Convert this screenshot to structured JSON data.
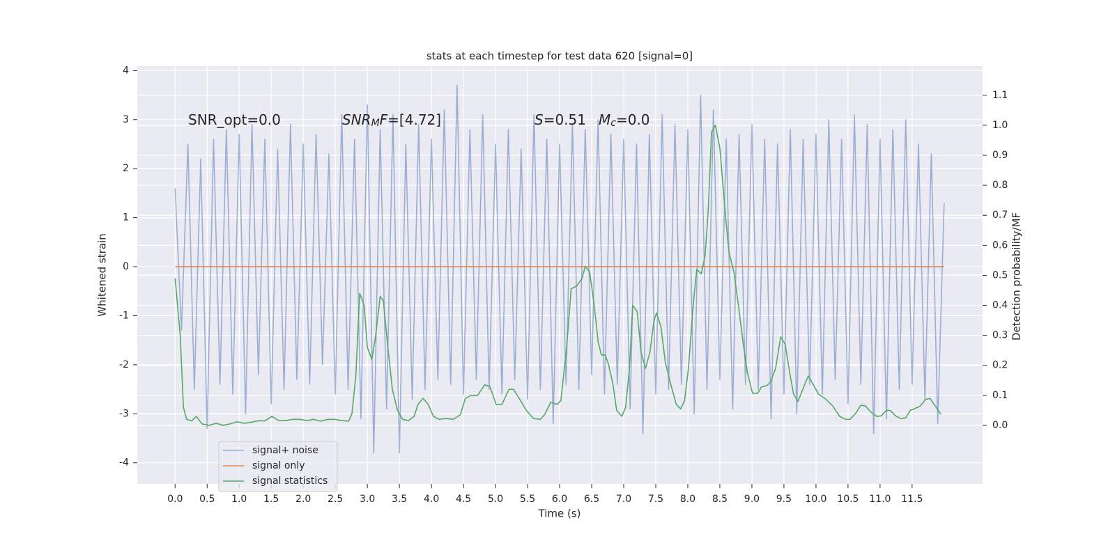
{
  "chart_data": {
    "type": "line",
    "title": "stats at each timestep for test data 620 [signal=0]",
    "xlabel": "Time (s)",
    "ylabel": "Whitened strain",
    "y2label": "Detection probability/MF",
    "xlim": [
      -0.59,
      12.6
    ],
    "ylim": [
      -4.43,
      4.09
    ],
    "y2lim": [
      -0.195,
      1.197
    ],
    "xticks": [
      {
        "value": 0,
        "label": "0.0"
      },
      0.5,
      {
        "value": 1,
        "label": "1.0"
      },
      1.5,
      {
        "value": 2,
        "label": "2.0"
      },
      2.5,
      {
        "value": 3,
        "label": "3.0"
      },
      3.5,
      {
        "value": 4,
        "label": "4.0"
      },
      4.5,
      {
        "value": 5,
        "label": "5.0"
      },
      5.5,
      {
        "value": 6,
        "label": "6.0"
      },
      6.5,
      {
        "value": 7,
        "label": "7.0"
      },
      7.5,
      {
        "value": 8,
        "label": "8.0"
      },
      8.5,
      {
        "value": 9,
        "label": "9.0"
      },
      9.5,
      {
        "value": 10,
        "label": "10.0"
      },
      10.5,
      {
        "value": 11,
        "label": "11.0"
      },
      11.5
    ],
    "yticks": [
      -4,
      -3,
      -2,
      -1,
      0,
      1,
      2,
      3,
      4
    ],
    "y2ticks": [
      {
        "value": 0,
        "label": "0.0"
      },
      0.1,
      0.2,
      0.3,
      0.4,
      0.5,
      0.6,
      0.7,
      0.8,
      0.9,
      {
        "value": 1,
        "label": "1.0"
      },
      1.1
    ],
    "grid": true,
    "legend": "lower left",
    "annotations": [
      {
        "parts": [
          {
            "text": "SNR_opt=0.0"
          }
        ]
      },
      {
        "parts": [
          {
            "text": "SNR",
            "style": "italic"
          },
          {
            "text": "M",
            "style": "sub"
          },
          {
            "text": "F",
            "style": "italic"
          },
          {
            "text": "=[4.72]"
          }
        ]
      },
      {
        "parts": [
          {
            "text": "S",
            "style": "italic"
          },
          {
            "text": "=0.51"
          }
        ]
      },
      {
        "parts": [
          {
            "text": "M",
            "style": "italic"
          },
          {
            "text": "c",
            "style": "sub"
          },
          {
            "text": "=0.0"
          }
        ]
      }
    ],
    "series": [
      {
        "name": "signal+ noise",
        "color": "#4c72b0",
        "opacity": 0.5,
        "x": [
          0,
          0.1,
          0.2,
          0.3,
          0.4,
          0.5,
          0.6,
          0.7,
          0.8,
          0.9,
          1,
          1.1,
          1.2,
          1.3,
          1.4,
          1.5,
          1.6,
          1.7,
          1.8,
          1.9,
          2,
          2.1,
          2.2,
          2.3,
          2.4,
          2.5,
          2.6,
          2.7,
          2.8,
          2.9,
          3,
          3.1,
          3.2,
          3.3,
          3.4,
          3.5,
          3.6,
          3.7,
          3.8,
          3.9,
          4,
          4.1,
          4.2,
          4.3,
          4.4,
          4.5,
          4.6,
          4.7,
          4.8,
          4.9,
          5,
          5.1,
          5.2,
          5.3,
          5.4,
          5.5,
          5.6,
          5.7,
          5.8,
          5.9,
          6,
          6.1,
          6.2,
          6.3,
          6.4,
          6.5,
          6.6,
          6.7,
          6.8,
          6.9,
          7,
          7.1,
          7.2,
          7.3,
          7.4,
          7.5,
          7.6,
          7.7,
          7.8,
          7.9,
          8,
          8.1,
          8.2,
          8.3,
          8.4,
          8.5,
          8.6,
          8.7,
          8.8,
          8.9,
          9,
          9.1,
          9.2,
          9.3,
          9.4,
          9.5,
          9.6,
          9.7,
          9.8,
          9.9,
          10,
          10.1,
          10.2,
          10.3,
          10.4,
          10.5,
          10.6,
          10.7,
          10.8,
          10.9,
          11,
          11.1,
          11.2,
          11.3,
          11.4,
          11.5,
          11.6,
          11.7,
          11.8,
          11.9,
          12
        ],
        "values": [
          1.6,
          -1.3,
          2.5,
          -2.5,
          2.2,
          -3.3,
          2.6,
          -2.4,
          2.8,
          -2.6,
          2.7,
          -3.0,
          2.9,
          -2.2,
          2.6,
          -2.8,
          2.4,
          -2.5,
          2.9,
          -2.3,
          2.5,
          -2.4,
          2.7,
          -2.0,
          2.3,
          -2.6,
          3.1,
          -2.5,
          2.6,
          -3.1,
          3.3,
          -3.8,
          2.8,
          -2.9,
          3.1,
          -3.8,
          2.5,
          -2.7,
          2.9,
          -2.5,
          2.6,
          -2.3,
          3.2,
          -2.4,
          3.7,
          -2.6,
          2.8,
          -2.3,
          3.1,
          -2.5,
          2.5,
          -2.6,
          2.8,
          -2.3,
          2.4,
          -2.7,
          3.1,
          -2.5,
          2.6,
          -3.2,
          2.5,
          -2.4,
          2.9,
          -2.5,
          2.8,
          -2.2,
          3.0,
          -2.6,
          2.7,
          -2.4,
          2.6,
          -2.9,
          2.5,
          -3.4,
          2.7,
          -2.6,
          3.1,
          -2.5,
          2.9,
          -2.4,
          2.8,
          -3.0,
          3.5,
          -2.5,
          3.2,
          -2.3,
          2.6,
          -2.9,
          2.7,
          -2.4,
          2.9,
          -2.5,
          2.6,
          -3.1,
          2.5,
          -2.6,
          2.8,
          -3.0,
          2.6,
          -2.4,
          2.7,
          -2.6,
          3.0,
          -2.3,
          2.6,
          -2.8,
          3.1,
          -2.4,
          2.9,
          -3.4,
          2.6,
          -3.1,
          2.8,
          -2.5,
          3.0,
          -2.4,
          2.5,
          -2.7,
          2.3,
          -3.2,
          1.3
        ]
      },
      {
        "name": "signal only",
        "color": "#dd8452",
        "opacity": 1,
        "x": [
          0,
          12
        ],
        "values": [
          0,
          0
        ]
      },
      {
        "name": "signal statistics",
        "color": "#55a868",
        "opacity": 1,
        "axis": "y2",
        "x": [
          0,
          0.08,
          0.13,
          0.18,
          0.26,
          0.33,
          0.42,
          0.53,
          0.64,
          0.75,
          0.86,
          0.97,
          1.08,
          1.18,
          1.29,
          1.4,
          1.51,
          1.62,
          1.73,
          1.84,
          1.95,
          2.05,
          2.16,
          2.27,
          2.38,
          2.49,
          2.6,
          2.71,
          2.76,
          2.82,
          2.88,
          2.95,
          3.0,
          3.07,
          3.13,
          3.2,
          3.25,
          3.32,
          3.39,
          3.47,
          3.55,
          3.64,
          3.73,
          3.79,
          3.87,
          3.95,
          4.03,
          4.12,
          4.23,
          4.34,
          4.45,
          4.53,
          4.62,
          4.72,
          4.83,
          4.91,
          5.01,
          5.1,
          5.21,
          5.28,
          5.37,
          5.48,
          5.59,
          5.7,
          5.77,
          5.86,
          5.96,
          6.02,
          6.11,
          6.18,
          6.27,
          6.35,
          6.4,
          6.47,
          6.54,
          6.6,
          6.65,
          6.71,
          6.76,
          6.83,
          6.89,
          6.97,
          7.03,
          7.09,
          7.14,
          7.21,
          7.27,
          7.34,
          7.41,
          7.47,
          7.51,
          7.58,
          7.65,
          7.73,
          7.82,
          7.89,
          7.95,
          8.01,
          8.09,
          8.14,
          8.21,
          8.27,
          8.32,
          8.37,
          8.43,
          8.5,
          8.58,
          8.64,
          8.72,
          8.79,
          8.86,
          8.93,
          9.01,
          9.09,
          9.15,
          9.23,
          9.29,
          9.37,
          9.45,
          9.52,
          9.59,
          9.65,
          9.72,
          9.79,
          9.88,
          9.96,
          10.04,
          10.15,
          10.26,
          10.37,
          10.46,
          10.53,
          10.62,
          10.7,
          10.77,
          10.86,
          10.95,
          11.02,
          11.1,
          11.16,
          11.24,
          11.32,
          11.4,
          11.47,
          11.53,
          11.62,
          11.71,
          11.78,
          11.86,
          11.95
        ],
        "values": [
          0.49,
          0.3,
          0.06,
          0.02,
          0.015,
          0.03,
          0.005,
          0,
          0.007,
          0,
          0.005,
          0.012,
          0.007,
          0.01,
          0.015,
          0.015,
          0.03,
          0.016,
          0.016,
          0.02,
          0.02,
          0.016,
          0.02,
          0.014,
          0.02,
          0.02,
          0.016,
          0.014,
          0.04,
          0.165,
          0.44,
          0.4,
          0.26,
          0.22,
          0.3,
          0.43,
          0.415,
          0.26,
          0.12,
          0.05,
          0.02,
          0.016,
          0.03,
          0.07,
          0.09,
          0.07,
          0.03,
          0.02,
          0.023,
          0.02,
          0.035,
          0.09,
          0.1,
          0.1,
          0.135,
          0.13,
          0.07,
          0.07,
          0.12,
          0.12,
          0.09,
          0.05,
          0.023,
          0.02,
          0.037,
          0.077,
          0.07,
          0.083,
          0.26,
          0.455,
          0.465,
          0.49,
          0.53,
          0.51,
          0.4,
          0.28,
          0.235,
          0.235,
          0.205,
          0.14,
          0.05,
          0.03,
          0.06,
          0.19,
          0.4,
          0.38,
          0.245,
          0.19,
          0.245,
          0.345,
          0.375,
          0.33,
          0.21,
          0.14,
          0.07,
          0.055,
          0.083,
          0.19,
          0.415,
          0.52,
          0.505,
          0.565,
          0.72,
          0.977,
          1.0,
          0.925,
          0.72,
          0.58,
          0.51,
          0.4,
          0.28,
          0.176,
          0.107,
          0.107,
          0.128,
          0.132,
          0.144,
          0.19,
          0.295,
          0.27,
          0.176,
          0.104,
          0.08,
          0.118,
          0.165,
          0.135,
          0.104,
          0.088,
          0.065,
          0.03,
          0.02,
          0.02,
          0.04,
          0.067,
          0.065,
          0.044,
          0.03,
          0.032,
          0.05,
          0.05,
          0.032,
          0.023,
          0.025,
          0.05,
          0.055,
          0.063,
          0.086,
          0.09,
          0.065,
          0.037
        ]
      }
    ]
  }
}
